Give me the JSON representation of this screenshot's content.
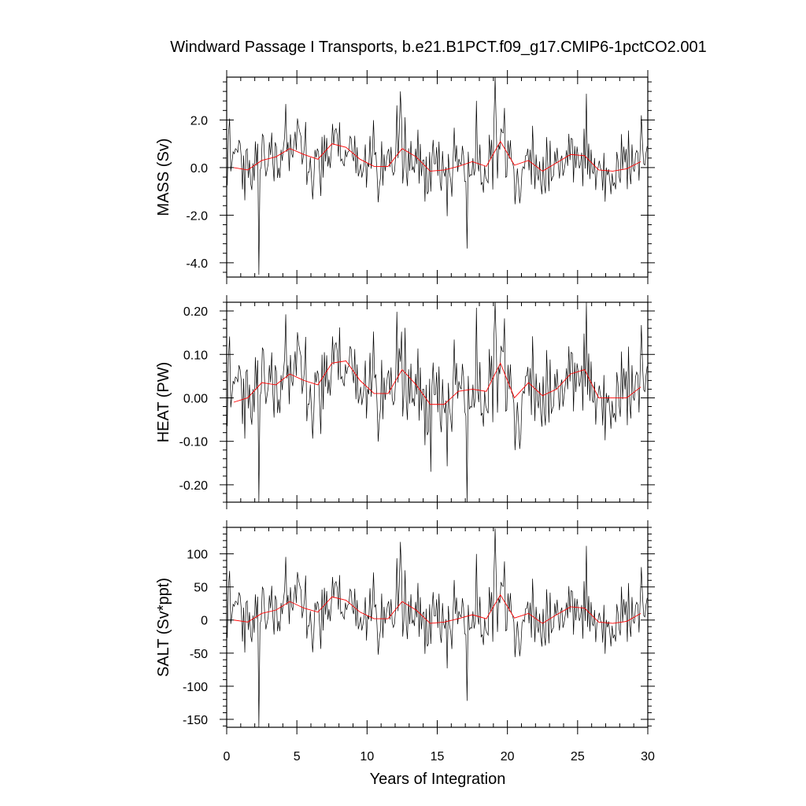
{
  "chart_data": {
    "type": "line",
    "title": "Windward Passage I Transports, b.e21.B1PCT.f09_g17.CMIP6-1pctCO2.001",
    "xlabel": "Years of Integration",
    "xlim": [
      0,
      30
    ],
    "x_ticks": [
      0,
      5,
      10,
      15,
      20,
      25,
      30
    ],
    "x_tick_labels": [
      "0",
      "5",
      "10",
      "15",
      "20",
      "25",
      "30"
    ],
    "grid": false,
    "line_colors": {
      "monthly": "#000000",
      "annual": "#ff0000"
    },
    "panels": [
      {
        "ylabel": "MASS (Sv)",
        "ylim": [
          -4.6,
          3.8
        ],
        "y_ticks": [
          2.0,
          0.0,
          -2.0,
          -4.0
        ],
        "y_tick_labels": [
          "2.0",
          "0.0",
          "-2.0",
          "-4.0"
        ],
        "series": [
          {
            "kind": "monthly",
            "n_points": 360,
            "approx_std": 0.75,
            "extremes": [
              {
                "x": 2.25,
                "y": -4.5
              },
              {
                "x": 17.1,
                "y": -3.4
              },
              {
                "x": 19.1,
                "y": 3.8
              },
              {
                "x": 12.4,
                "y": 3.2
              },
              {
                "x": 25.6,
                "y": 3.1
              }
            ]
          },
          {
            "kind": "annual",
            "x": [
              0.5,
              1.5,
              2.5,
              3.5,
              4.5,
              5.5,
              6.5,
              7.5,
              8.5,
              9.5,
              10.5,
              11.5,
              12.5,
              13.5,
              14.5,
              15.5,
              16.5,
              17.5,
              18.5,
              19.5,
              20.5,
              21.5,
              22.5,
              23.5,
              24.5,
              25.5,
              26.5,
              27.5,
              28.5,
              29.5
            ],
            "values": [
              0.0,
              -0.1,
              0.3,
              0.45,
              0.8,
              0.55,
              0.35,
              1.0,
              0.85,
              0.35,
              0.05,
              0.05,
              0.8,
              0.45,
              -0.15,
              -0.1,
              0.05,
              0.25,
              0.05,
              1.1,
              0.1,
              0.3,
              -0.15,
              0.2,
              0.55,
              0.5,
              -0.1,
              -0.15,
              -0.05,
              0.25
            ]
          }
        ]
      },
      {
        "ylabel": "HEAT (PW)",
        "ylim": [
          -0.24,
          0.22
        ],
        "y_ticks": [
          0.2,
          0.1,
          0.0,
          -0.1,
          -0.2
        ],
        "y_tick_labels": [
          "0.20",
          "0.10",
          "0.00",
          "-0.10",
          "-0.20"
        ],
        "series": [
          {
            "kind": "monthly",
            "n_points": 360,
            "approx_std": 0.055,
            "extremes": [
              {
                "x": 2.25,
                "y": -0.24
              },
              {
                "x": 17.1,
                "y": -0.24
              },
              {
                "x": 19.1,
                "y": 0.22
              },
              {
                "x": 25.6,
                "y": 0.22
              },
              {
                "x": 14.5,
                "y": -0.17
              }
            ]
          },
          {
            "kind": "annual",
            "x": [
              0.5,
              1.5,
              2.5,
              3.5,
              4.5,
              5.5,
              6.5,
              7.5,
              8.5,
              9.5,
              10.5,
              11.5,
              12.5,
              13.5,
              14.5,
              15.5,
              16.5,
              17.5,
              18.5,
              19.5,
              20.5,
              21.5,
              22.5,
              23.5,
              24.5,
              25.5,
              26.5,
              27.5,
              28.5,
              29.5
            ],
            "values": [
              -0.01,
              0.0,
              0.035,
              0.03,
              0.055,
              0.04,
              0.03,
              0.08,
              0.085,
              0.04,
              0.01,
              0.01,
              0.065,
              0.03,
              -0.015,
              -0.015,
              0.015,
              0.02,
              0.015,
              0.08,
              0.0,
              0.035,
              0.005,
              0.02,
              0.055,
              0.065,
              0.0,
              0.0,
              0.0,
              0.025
            ]
          }
        ]
      },
      {
        "ylabel": "SALT (Sv*ppt)",
        "ylim": [
          -162,
          140
        ],
        "y_ticks": [
          100,
          50,
          0,
          -50,
          -100,
          -150
        ],
        "y_tick_labels": [
          "100",
          "50",
          "0",
          "-50",
          "-100",
          "-150"
        ],
        "series": [
          {
            "kind": "monthly",
            "n_points": 360,
            "approx_std": 27,
            "extremes": [
              {
                "x": 2.25,
                "y": -162
              },
              {
                "x": 17.1,
                "y": -122
              },
              {
                "x": 19.1,
                "y": 138
              },
              {
                "x": 12.4,
                "y": 118
              },
              {
                "x": 25.6,
                "y": 112
              }
            ]
          },
          {
            "kind": "annual",
            "x": [
              0.5,
              1.5,
              2.5,
              3.5,
              4.5,
              5.5,
              6.5,
              7.5,
              8.5,
              9.5,
              10.5,
              11.5,
              12.5,
              13.5,
              14.5,
              15.5,
              16.5,
              17.5,
              18.5,
              19.5,
              20.5,
              21.5,
              22.5,
              23.5,
              24.5,
              25.5,
              26.5,
              27.5,
              28.5,
              29.5
            ],
            "values": [
              0,
              -3,
              10,
              15,
              28,
              18,
              12,
              35,
              30,
              12,
              2,
              2,
              28,
              15,
              -5,
              -3,
              2,
              8,
              2,
              38,
              3,
              10,
              -5,
              8,
              20,
              18,
              -3,
              -5,
              -2,
              10
            ]
          }
        ]
      }
    ]
  }
}
